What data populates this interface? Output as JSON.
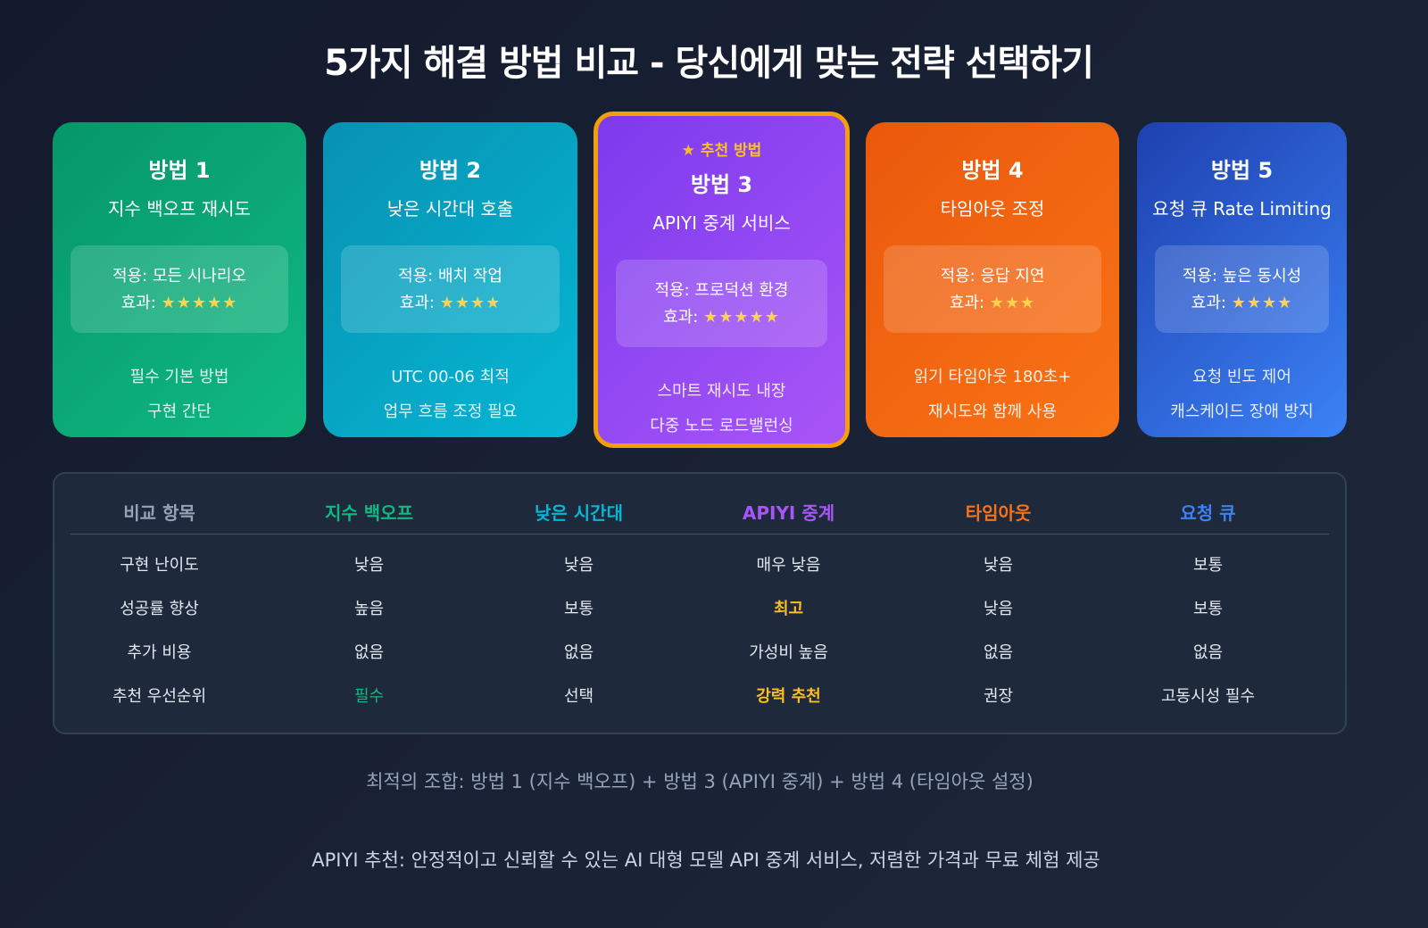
{
  "title": "5가지 해결 방법 비교 - 당신에게 맞는 전략 선택하기",
  "cards": [
    {
      "name": "방법 1",
      "sub": "지수 백오프 재시도",
      "apply": "적용: 모든 시나리오",
      "effect_label": "효과:",
      "stars": "★★★★★",
      "rating": 5,
      "notes": [
        "필수 기본 방법",
        "구현 간단"
      ]
    },
    {
      "name": "방법 2",
      "sub": "낮은 시간대 호출",
      "apply": "적용: 배치 작업",
      "effect_label": "효과:",
      "stars": "★★★★",
      "rating": 4,
      "notes": [
        "UTC 00-06 최적",
        "업무 흐름 조정 필요"
      ]
    },
    {
      "badge": "★ 추천 방법",
      "name": "방법 3",
      "sub": "APIYI 중계 서비스",
      "apply": "적용: 프로덕션 환경",
      "effect_label": "효과:",
      "stars": "★★★★★",
      "rating": 5,
      "notes": [
        "스마트 재시도 내장",
        "다중 노드 로드밸런싱"
      ]
    },
    {
      "name": "방법 4",
      "sub": "타임아웃 조정",
      "apply": "적용: 응답 지연",
      "effect_label": "효과:",
      "stars": "★★★",
      "rating": 3,
      "notes": [
        "읽기 타임아웃 180초+",
        "재시도와 함께 사용"
      ]
    },
    {
      "name": "방법 5",
      "sub": "요청 큐 Rate Limiting",
      "apply": "적용: 높은 동시성",
      "effect_label": "효과:",
      "stars": "★★★★",
      "rating": 4,
      "notes": [
        "요청 빈도 제어",
        "캐스케이드 장애 방지"
      ]
    }
  ],
  "table": {
    "headers": [
      "비교 항목",
      "지수 백오프",
      "낮은 시간대",
      "APIYI 중계",
      "타임아웃",
      "요청 큐"
    ],
    "header_colors": [
      "#94a3b8",
      "#10b981",
      "#06b6d4",
      "#a855f7",
      "#f97316",
      "#3b82f6"
    ],
    "rows": [
      [
        "구현 난이도",
        "낮음",
        "낮음",
        "매우 낮음",
        "낮음",
        "보통"
      ],
      [
        "성공률 향상",
        "높음",
        "보통",
        "최고",
        "낮음",
        "보통"
      ],
      [
        "추가 비용",
        "없음",
        "없음",
        "가성비 높음",
        "없음",
        "없음"
      ],
      [
        "추천 우선순위",
        "필수",
        "선택",
        "강력 추천",
        "권장",
        "고동시성 필수"
      ]
    ],
    "highlight_color": "#fbbf24",
    "green_color": "#10b981"
  },
  "footer": {
    "combo": "최적의 조합: 방법 1 (지수 백오프) + 방법 3 (APIYI 중계) + 방법 4 (타임아웃 설정)",
    "recommend": "APIYI 추천: 안정적이고 신뢰할 수 있는 AI 대형 모델 API 중계 서비스, 저렴한 가격과 무료 체험 제공"
  }
}
